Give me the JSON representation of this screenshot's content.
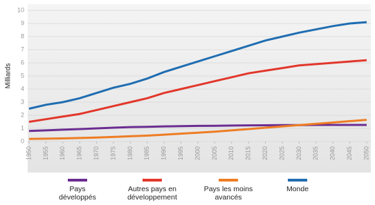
{
  "chart_data": {
    "type": "line",
    "y_label": "Milliards",
    "x": [
      1950,
      1955,
      1960,
      1965,
      1970,
      1975,
      1980,
      1985,
      1990,
      1995,
      2000,
      2005,
      2010,
      2015,
      2020,
      2025,
      2030,
      2035,
      2040,
      2045,
      2050
    ],
    "xlim": [
      1950,
      2050
    ],
    "xticks": [
      1950,
      1955,
      1960,
      1965,
      1970,
      1975,
      1980,
      1985,
      1990,
      1995,
      2000,
      2005,
      2010,
      2015,
      2020,
      2025,
      2030,
      2035,
      2040,
      2045,
      2050
    ],
    "ylim": [
      0,
      10
    ],
    "yticks": [
      0,
      1,
      2,
      3,
      4,
      5,
      6,
      7,
      8,
      9,
      10
    ],
    "grid": true,
    "series": [
      {
        "name": "Pays développés",
        "color": "#6b2d91",
        "values": [
          0.8,
          0.85,
          0.9,
          0.95,
          1.0,
          1.05,
          1.1,
          1.12,
          1.15,
          1.17,
          1.19,
          1.2,
          1.22,
          1.23,
          1.24,
          1.25,
          1.25,
          1.26,
          1.26,
          1.26,
          1.26
        ]
      },
      {
        "name": "Autres pays en développement",
        "color": "#e2372b",
        "values": [
          1.5,
          1.7,
          1.9,
          2.1,
          2.4,
          2.7,
          3.0,
          3.3,
          3.7,
          4.0,
          4.3,
          4.6,
          4.9,
          5.2,
          5.4,
          5.6,
          5.8,
          5.9,
          6.0,
          6.1,
          6.2
        ]
      },
      {
        "name": "Pays les moins avancés",
        "color": "#ee7d23",
        "values": [
          0.2,
          0.22,
          0.24,
          0.27,
          0.3,
          0.35,
          0.4,
          0.45,
          0.52,
          0.6,
          0.67,
          0.75,
          0.85,
          0.95,
          1.05,
          1.15,
          1.25,
          1.35,
          1.45,
          1.55,
          1.65
        ]
      },
      {
        "name": "Monde",
        "color": "#1f6db1",
        "values": [
          2.5,
          2.8,
          3.0,
          3.3,
          3.7,
          4.1,
          4.4,
          4.8,
          5.3,
          5.7,
          6.1,
          6.5,
          6.9,
          7.3,
          7.7,
          8.0,
          8.3,
          8.55,
          8.8,
          9.0,
          9.1
        ]
      }
    ]
  }
}
